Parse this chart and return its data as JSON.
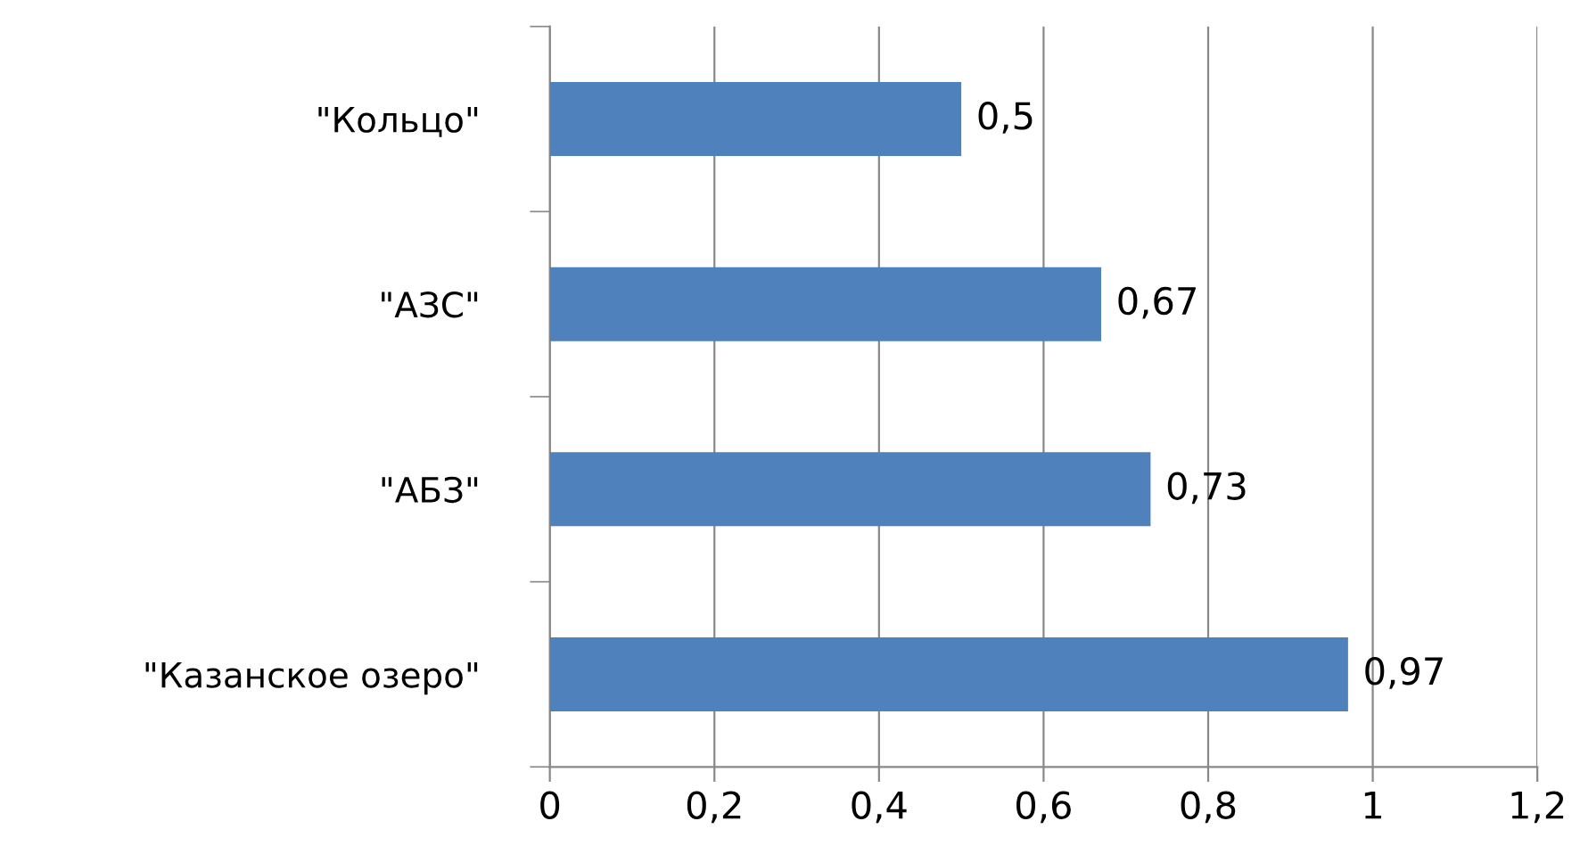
{
  "chart_data": {
    "type": "bar",
    "orientation": "horizontal",
    "categories": [
      "\"Кольцо\"",
      "\"АЗС\"",
      "\"АБЗ\"",
      "\"Казанское озеро\""
    ],
    "values": [
      0.5,
      0.67,
      0.73,
      0.97
    ],
    "value_labels": [
      "0,5",
      "0,67",
      "0,73",
      "0,97"
    ],
    "color": "#4f81bd",
    "xlim": [
      0,
      1.2
    ],
    "xticks": [
      0,
      {
        "value": 0.2,
        "label": "0,2"
      },
      {
        "value": 0.4,
        "label": "0,4"
      },
      {
        "value": 0.6,
        "label": "0,6"
      },
      {
        "value": 0.8,
        "label": "0,8"
      },
      1,
      {
        "value": 1.2,
        "label": "1,2"
      }
    ],
    "grid": "x"
  }
}
